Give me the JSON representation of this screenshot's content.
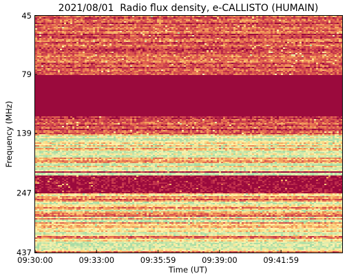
{
  "chart_data": {
    "type": "heatmap",
    "title": "2021/08/01  Radio flux density, e-CALLISTO (HUMAIN)",
    "xlabel": "Time (UT)",
    "ylabel": "Frequency (MHz)",
    "x_tick_labels": [
      "09:30:00",
      "09:33:00",
      "09:35:59",
      "09:39:00",
      "09:41:59"
    ],
    "y_tick_labels": [
      "45",
      "79",
      "139",
      "247",
      "437"
    ],
    "y_axis": "frequency increases downward, log scale",
    "colormap": [
      "#9b0a3d",
      "#c1304c",
      "#e0604e",
      "#f5a35c",
      "#fde08a",
      "#fff5b0",
      "#a5dba4"
    ],
    "grid": false,
    "bands": [
      {
        "freq_range": [
          45,
          79
        ],
        "level": 0.25
      },
      {
        "freq_range": [
          79,
          118
        ],
        "level": 0.0
      },
      {
        "freq_range": [
          118,
          139
        ],
        "level": 0.2
      },
      {
        "freq_range": [
          139,
          200
        ],
        "level": 0.75
      },
      {
        "freq_range": [
          200,
          247
        ],
        "level": 0.05
      },
      {
        "freq_range": [
          247,
          437
        ],
        "level": 0.6
      }
    ]
  }
}
